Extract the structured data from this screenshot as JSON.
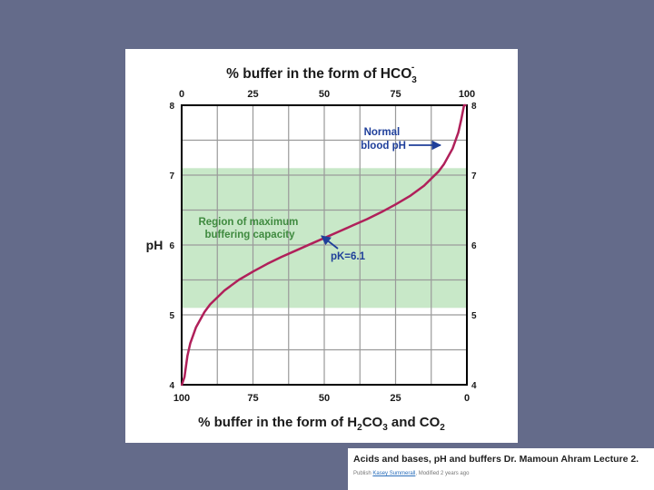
{
  "chart_data": {
    "type": "line",
    "top_axis_title": "% buffer in the form of HCO",
    "top_axis_title_sub": "3",
    "top_axis_title_sup": "-",
    "top_ticks": [
      "0",
      "25",
      "50",
      "75",
      "100"
    ],
    "bottom_axis_title_parts": [
      "% buffer in the form of H",
      "2",
      "CO",
      "3",
      " and CO",
      "2"
    ],
    "bottom_ticks": [
      "100",
      "75",
      "50",
      "25",
      "0"
    ],
    "ylabel": "pH",
    "y_ticks": [
      "4",
      "5",
      "6",
      "7",
      "8"
    ],
    "xlim": [
      0,
      100
    ],
    "ylim": [
      4,
      8
    ],
    "grid": true,
    "buffer_region": {
      "ymin": 5.1,
      "ymax": 7.1,
      "color": "#c8e8c8"
    },
    "series": [
      {
        "color": "#b0205a",
        "x": [
          0.05,
          1,
          2,
          3,
          5,
          8,
          10,
          15,
          20,
          25,
          30,
          35,
          40,
          45,
          50,
          55,
          60,
          65,
          70,
          75,
          80,
          85,
          90,
          92,
          95,
          97,
          98,
          99,
          99.5
        ],
        "y": [
          4.0,
          4.11,
          4.41,
          4.59,
          4.82,
          5.04,
          5.15,
          5.35,
          5.5,
          5.62,
          5.73,
          5.83,
          5.92,
          6.01,
          6.1,
          6.19,
          6.28,
          6.37,
          6.47,
          6.58,
          6.7,
          6.85,
          7.05,
          7.16,
          7.38,
          7.61,
          7.79,
          8.0,
          8.0
        ]
      }
    ],
    "annotations": [
      {
        "lines": [
          "Region of maximum",
          "buffering capacity"
        ],
        "color": "#3f8a3f"
      },
      {
        "lines": [
          "Normal",
          "blood pH"
        ],
        "color": "#1f3f9a",
        "point": [
          95,
          7.4
        ]
      },
      {
        "lines": [
          "pK=6.1"
        ],
        "color": "#1f3f9a",
        "point": [
          50,
          6.1
        ]
      }
    ]
  },
  "caption": {
    "title": "Acids and bases, pH and buffers Dr. Mamoun Ahram Lecture 2.",
    "publish_label": "Publish",
    "author": "Kasey Summerall",
    "modified": ", Modified 2 years ago"
  }
}
